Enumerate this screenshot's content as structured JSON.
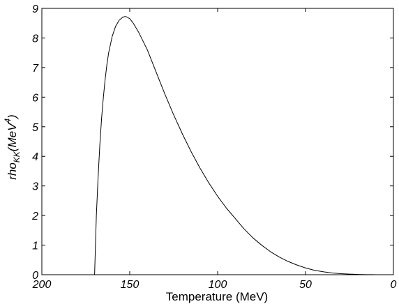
{
  "chart_data": {
    "type": "line",
    "title": "",
    "xlabel": "Temperature (MeV)",
    "ylabel": {
      "base": "rho",
      "base_sub": "KK",
      "unit_prefix": "(MeV",
      "unit_sup": "4",
      "unit_suffix": ")"
    },
    "xlim": [
      200,
      0
    ],
    "ylim": [
      0,
      9
    ],
    "x_reversed": true,
    "xticks": [
      200,
      150,
      100,
      50,
      0
    ],
    "yticks": [
      0,
      1,
      2,
      3,
      4,
      5,
      6,
      7,
      8,
      9
    ],
    "grid": false,
    "line_color": "#000000",
    "series": [
      {
        "x": [
          170,
          169.5,
          169,
          168,
          167,
          166,
          165,
          164,
          163,
          162,
          160,
          158,
          156,
          154,
          153,
          152,
          150,
          148,
          145,
          140,
          135,
          130,
          125,
          120,
          115,
          110,
          105,
          100,
          95,
          90,
          85,
          80,
          75,
          70,
          65,
          60,
          55,
          50,
          45,
          40,
          35,
          30,
          25,
          20,
          15,
          12,
          10,
          5
        ],
        "y": [
          0,
          1.0,
          2.0,
          3.3,
          4.4,
          5.3,
          6.0,
          6.6,
          7.1,
          7.5,
          8.05,
          8.4,
          8.6,
          8.7,
          8.72,
          8.72,
          8.65,
          8.5,
          8.2,
          7.6,
          6.85,
          6.1,
          5.4,
          4.75,
          4.15,
          3.6,
          3.1,
          2.65,
          2.25,
          1.9,
          1.55,
          1.25,
          1.0,
          0.78,
          0.6,
          0.45,
          0.33,
          0.23,
          0.15,
          0.1,
          0.06,
          0.035,
          0.02,
          0.01,
          0.004,
          0.002,
          0.001,
          0.0
        ]
      }
    ]
  }
}
